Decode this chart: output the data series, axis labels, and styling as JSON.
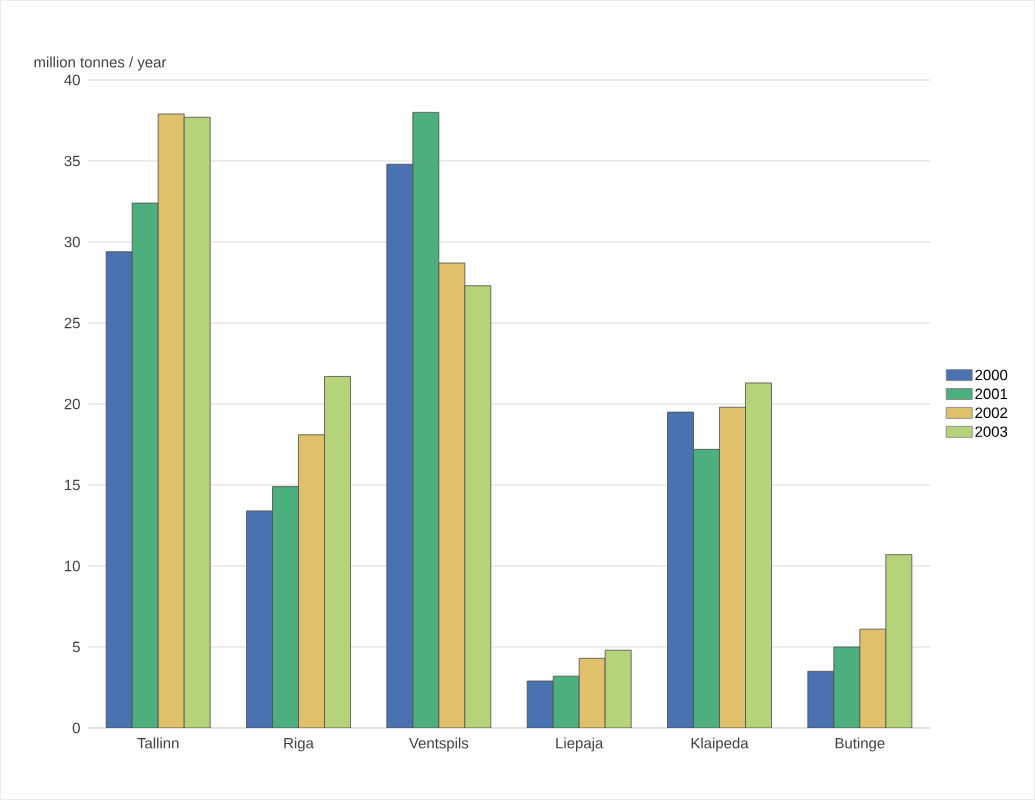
{
  "chart_data": {
    "type": "bar",
    "ylabel": "million tonnes / year",
    "categories": [
      "Tallinn",
      "Riga",
      "Ventspils",
      "Liepaja",
      "Klaipeda",
      "Butinge"
    ],
    "series": [
      {
        "name": "2000",
        "color": "#4a72b0",
        "values": [
          29.4,
          13.4,
          34.8,
          2.9,
          19.5,
          3.5
        ]
      },
      {
        "name": "2001",
        "color": "#4caf7d",
        "values": [
          32.4,
          14.9,
          38.0,
          3.2,
          17.2,
          5.0
        ]
      },
      {
        "name": "2002",
        "color": "#e0c06a",
        "values": [
          37.9,
          18.1,
          28.7,
          4.3,
          19.8,
          6.1
        ]
      },
      {
        "name": "2003",
        "color": "#b5d47a",
        "values": [
          37.7,
          21.7,
          27.3,
          4.8,
          21.3,
          10.7
        ]
      }
    ],
    "ylim": [
      0,
      40
    ],
    "yticks": [
      0,
      5,
      10,
      15,
      20,
      25,
      30,
      35,
      40
    ],
    "grid": "y",
    "legend": "right"
  }
}
